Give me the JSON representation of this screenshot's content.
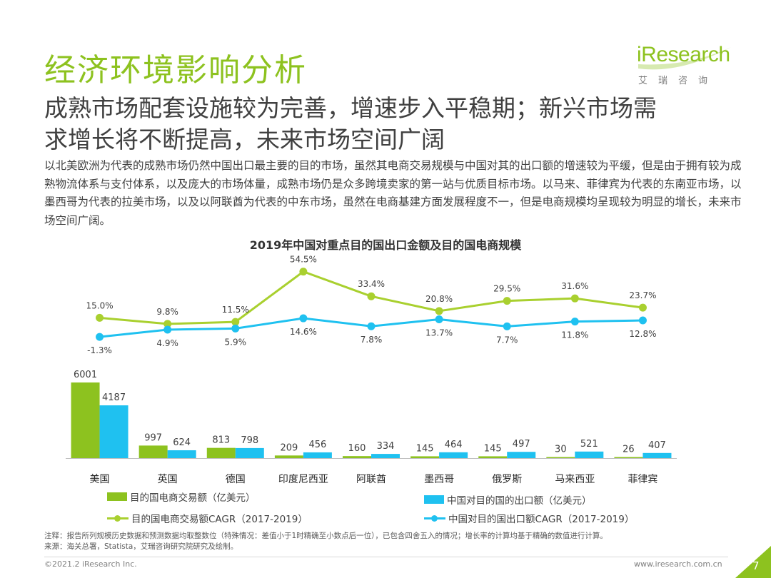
{
  "header": {
    "section_title": "经济环境影响分析",
    "logo_text": "iResearch",
    "logo_subtitle": "艾瑞咨询"
  },
  "headline": {
    "line1": "成熟市场配套设施较为完善，增速步入平稳期；新兴市场需",
    "line2": "求增长将不断提高，未来市场空间广阔"
  },
  "body_text": "以北美欧洲为代表的成熟市场仍然中国出口最主要的目的市场，虽然其电商交易规模与中国对其的出口额的增速较为平缓，但是由于拥有较为成熟物流体系与支付体系，以及庞大的市场体量，成熟市场仍是众多跨境卖家的第一站与优质目标市场。以马来、菲律宾为代表的东南亚市场，以墨西哥为代表的拉美市场，以及以阿联酋为代表的中东市场，虽然在电商基建方面发展程度不一，但是电商规模均呈现较为明显的增长，未来市场空间广阔。",
  "chart_data": {
    "type": "bar",
    "title": "2019年中国对重点目的国出口金额及目的国电商规模",
    "categories": [
      "美国",
      "英国",
      "德国",
      "印度尼西亚",
      "阿联酋",
      "墨西哥",
      "俄罗斯",
      "马来西亚",
      "菲律宾"
    ],
    "series": [
      {
        "name": "目的国电商交易额（亿美元）",
        "type": "bar",
        "color": "#8dc21f",
        "values": [
          6001,
          997,
          813,
          209,
          160,
          145,
          145,
          30,
          26
        ]
      },
      {
        "name": "中国对目的国的出口额（亿美元）",
        "type": "bar",
        "color": "#1fc1f0",
        "values": [
          4187,
          624,
          798,
          456,
          334,
          464,
          497,
          521,
          407
        ]
      },
      {
        "name": "目的国电商交易额CAGR（2017-2019）",
        "type": "line",
        "color": "#a9d02f",
        "values": [
          15.0,
          9.8,
          11.5,
          54.5,
          33.4,
          20.8,
          29.5,
          31.6,
          23.7
        ],
        "labels": [
          "15.0%",
          "9.8%",
          "11.5%",
          "54.5%",
          "33.4%",
          "20.8%",
          "29.5%",
          "31.6%",
          "23.7%"
        ]
      },
      {
        "name": "中国对目的国出口额CAGR（2017-2019）",
        "type": "line",
        "color": "#1fc1f0",
        "values": [
          -1.3,
          4.9,
          5.9,
          14.6,
          7.8,
          13.7,
          7.7,
          11.8,
          12.8
        ],
        "labels": [
          "-1.3%",
          "4.9%",
          "5.9%",
          "14.6%",
          "7.8%",
          "13.7%",
          "7.7%",
          "11.8%",
          "12.8%"
        ]
      }
    ],
    "legend_position": "bottom",
    "grid": false
  },
  "notes": {
    "note": "注释：报告所列规模历史数据和预测数据均取整数位（特殊情况：差值小于1时精确至小数点后一位），已包含四舍五入的情况；增长率的计算均基于精确的数值进行计算。",
    "source": "来源：海关总署，Statista，艾瑞咨询研究院研究及绘制。"
  },
  "footer": {
    "copyright": "©2021.2 iResearch Inc.",
    "url": "www.iresearch.com.cn",
    "page_number": "7"
  },
  "colors": {
    "accent_green": "#8dc21f",
    "accent_blue": "#1fc1f0",
    "line_green": "#a9d02f"
  }
}
